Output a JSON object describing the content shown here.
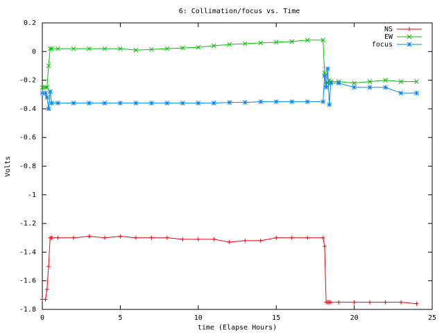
{
  "chart_data": {
    "type": "line",
    "title": "6: Collimation/focus vs. Time",
    "x_label": "time (Elapse Hours)",
    "y_label": "Volts",
    "x": [
      0,
      0.2,
      0.3,
      0.4,
      0.5,
      0.6,
      1,
      2,
      3,
      4,
      5,
      6,
      7,
      8,
      9,
      10,
      11,
      12,
      13,
      14,
      15,
      16,
      17,
      18,
      18.1,
      18.2,
      18.3,
      18.4,
      18.5,
      19,
      20,
      21,
      22,
      23,
      24
    ],
    "series": [
      {
        "name": "NS",
        "color": "#e8000b",
        "marker": "plus",
        "values": [
          -1.73,
          -1.73,
          -1.66,
          -1.5,
          -1.3,
          -1.3,
          -1.3,
          -1.3,
          -1.29,
          -1.3,
          -1.29,
          -1.3,
          -1.3,
          -1.3,
          -1.31,
          -1.31,
          -1.31,
          -1.33,
          -1.32,
          -1.32,
          -1.3,
          -1.3,
          -1.3,
          -1.3,
          -1.36,
          -1.75,
          -1.75,
          -1.75,
          -1.75,
          -1.75,
          -1.75,
          -1.75,
          -1.75,
          -1.75,
          -1.76
        ]
      },
      {
        "name": "EW",
        "color": "#00c000",
        "marker": "cross",
        "values": [
          -0.25,
          -0.25,
          -0.25,
          -0.1,
          0.02,
          0.02,
          0.02,
          0.02,
          0.02,
          0.02,
          0.02,
          0.01,
          0.015,
          0.02,
          0.025,
          0.03,
          0.04,
          0.05,
          0.055,
          0.06,
          0.065,
          0.07,
          0.08,
          0.08,
          -0.15,
          -0.23,
          -0.22,
          -0.2,
          -0.21,
          -0.21,
          -0.22,
          -0.21,
          -0.2,
          -0.21,
          -0.21
        ]
      },
      {
        "name": "focus",
        "color": "#0080ff",
        "marker": "star",
        "values": [
          -0.29,
          -0.29,
          -0.32,
          -0.4,
          -0.28,
          -0.36,
          -0.36,
          -0.36,
          -0.36,
          -0.36,
          -0.36,
          -0.36,
          -0.36,
          -0.36,
          -0.36,
          -0.36,
          -0.36,
          -0.355,
          -0.355,
          -0.35,
          -0.35,
          -0.35,
          -0.35,
          -0.35,
          -0.17,
          -0.25,
          -0.12,
          -0.37,
          -0.22,
          -0.22,
          -0.25,
          -0.25,
          -0.25,
          -0.29,
          -0.29
        ]
      }
    ],
    "xlim": [
      0,
      25
    ],
    "xticks": [
      0,
      5,
      10,
      15,
      20,
      25
    ],
    "ylim": [
      -1.8,
      0.2
    ],
    "yticks": [
      0.2,
      0,
      -0.2,
      -0.4,
      -0.6,
      -0.8,
      -1,
      -1.2,
      -1.4,
      -1.6,
      -1.8
    ],
    "grid": false,
    "legend": "top-right"
  }
}
